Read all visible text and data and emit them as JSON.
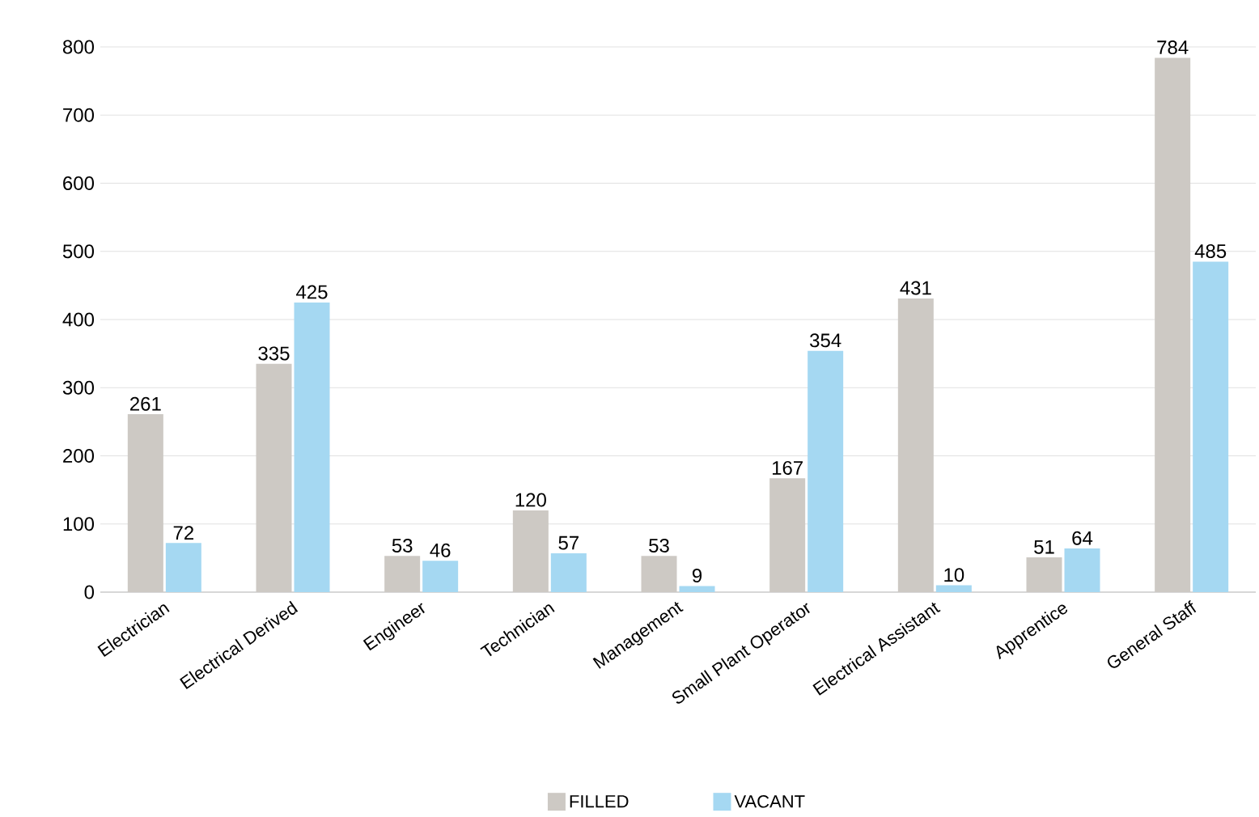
{
  "chart_data": {
    "type": "bar",
    "categories": [
      "Electrician",
      "Electrical Derived",
      "Engineer",
      "Technician",
      "Management",
      "Small Plant Operator",
      "Electrical Assistant",
      "Apprentice",
      "General Staff"
    ],
    "series": [
      {
        "name": "FILLED",
        "color": "#cdc9c4",
        "values": [
          261,
          335,
          53,
          120,
          53,
          167,
          431,
          51,
          784
        ]
      },
      {
        "name": "VACANT",
        "color": "#a5d8f2",
        "values": [
          72,
          425,
          46,
          57,
          9,
          354,
          10,
          64,
          485
        ]
      }
    ],
    "ylim": [
      0,
      800
    ],
    "yticks": [
      0,
      100,
      200,
      300,
      400,
      500,
      600,
      700,
      800
    ],
    "grid": "y",
    "legend": "bottom",
    "data_labels": true
  }
}
